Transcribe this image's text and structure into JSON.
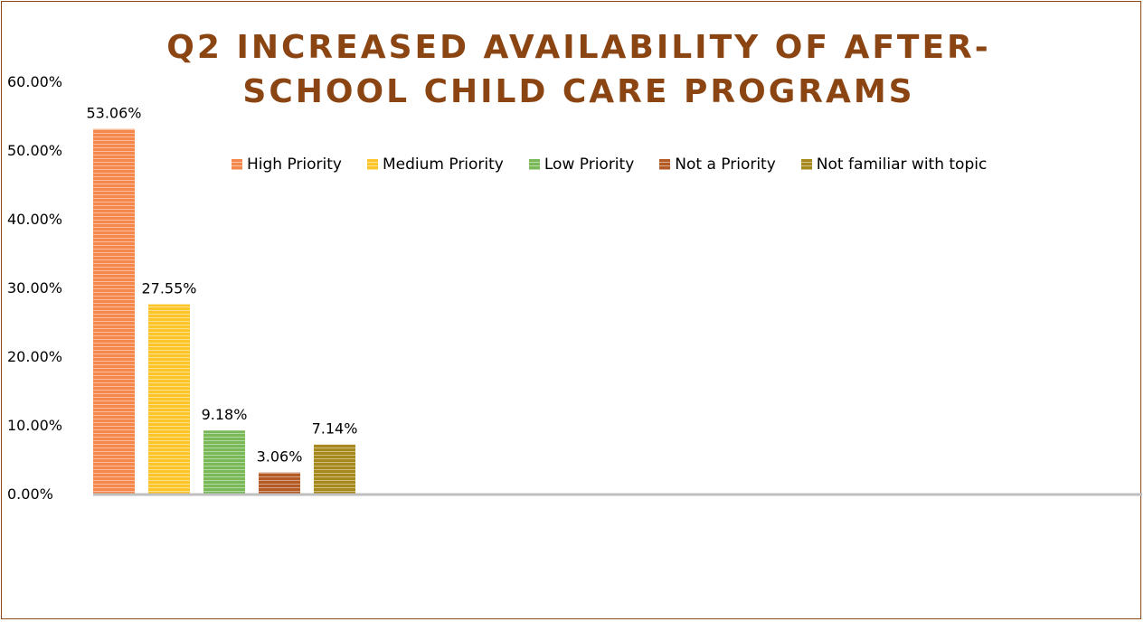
{
  "chart_data": {
    "type": "bar",
    "title_line1": "Q2 INCREASED AVAILABILITY OF AFTER-",
    "title_line2": "SCHOOL CHILD CARE PROGRAMS",
    "categories": [
      "High Priority",
      "Medium Priority",
      "Low Priority",
      "Not a Priority",
      "Not familiar with topic"
    ],
    "values": [
      53.06,
      27.55,
      9.18,
      3.06,
      7.14
    ],
    "data_labels": [
      "53.06%",
      "27.55%",
      "9.18%",
      "3.06%",
      "7.14%"
    ],
    "colors": [
      "#f4874b",
      "#fdc52a",
      "#79b957",
      "#b35a25",
      "#a6881c"
    ],
    "ytick_labels": [
      "0.00%",
      "10.00%",
      "20.00%",
      "30.00%",
      "40.00%",
      "50.00%",
      "60.00%"
    ],
    "ylim": [
      0,
      60
    ],
    "legend_position": "top",
    "grid": false
  }
}
